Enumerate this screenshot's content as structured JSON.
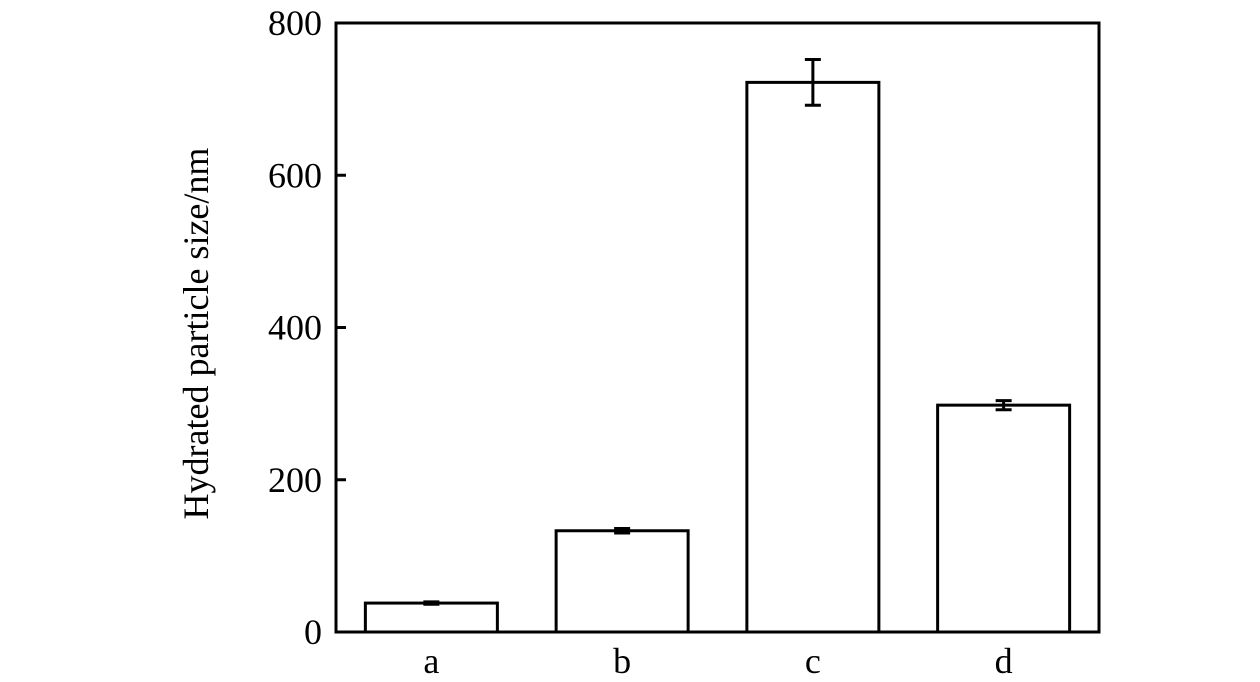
{
  "chart_data": {
    "type": "bar",
    "title": "",
    "xlabel": "",
    "ylabel": "Hydrated particle size/nm",
    "categories": [
      "a",
      "b",
      "c",
      "d"
    ],
    "values": [
      38,
      133,
      722,
      298
    ],
    "errors": [
      1.5,
      3,
      30,
      6
    ],
    "ylim": [
      0,
      800
    ],
    "yticks": [
      0,
      200,
      400,
      600,
      800
    ],
    "grid": false,
    "legend": "none",
    "bar_fill": "#ffffff",
    "bar_stroke": "#000000"
  }
}
